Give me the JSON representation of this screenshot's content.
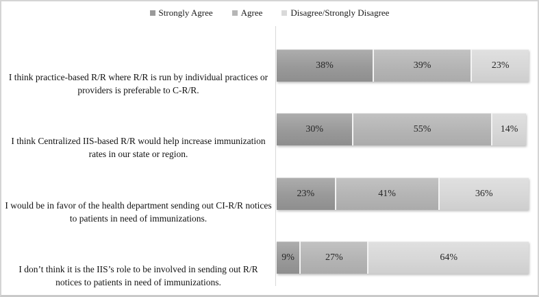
{
  "figure": {
    "background": "#ffffff",
    "border_color": "#d4d4d4"
  },
  "legend": {
    "items": [
      {
        "label": "Strongly Agree",
        "color": "#9a9a9a"
      },
      {
        "label": "Agree",
        "color": "#b6b6b6"
      },
      {
        "label": "Disagree/Strongly Disagree",
        "color": "#d9d9d9"
      }
    ]
  },
  "chart_data": {
    "type": "bar",
    "orientation": "horizontal",
    "stacked": true,
    "title": "",
    "xlabel": "",
    "ylabel": "",
    "xlim": [
      0,
      100
    ],
    "grid": false,
    "legend_position": "top",
    "axis_line_color": "#d8d8d8",
    "value_label_format": "percent",
    "categories": [
      "I think practice-based R/R where R/R is run by individual practices or providers is preferable to C-R/R.",
      "I think Centralized IIS-based R/R would help increase immunization rates in our state or region.",
      "I would be in favor of the health department sending out CI-R/R notices to patients in need of immunizations.",
      "I don’t think it is the IIS’s role to be involved in sending out R/R notices to patients in need of immunizations."
    ],
    "series": [
      {
        "name": "Strongly Agree",
        "color": "#9a9a9a",
        "values": [
          38,
          30,
          23,
          9
        ]
      },
      {
        "name": "Agree",
        "color": "#b6b6b6",
        "values": [
          39,
          55,
          41,
          27
        ]
      },
      {
        "name": "Disagree/Strongly Disagree",
        "color": "#d9d9d9",
        "values": [
          23,
          14,
          36,
          64
        ]
      }
    ]
  },
  "rows": [
    {
      "label": "I think practice-based R/R where R/R is run by individual practices or providers is preferable to C-R/R.",
      "values": [
        "38%",
        "39%",
        "23%"
      ]
    },
    {
      "label": "I think Centralized IIS-based R/R would help increase immunization rates in our state or region.",
      "values": [
        "30%",
        "55%",
        "14%"
      ]
    },
    {
      "label": "I would be in favor of the health department sending out CI-R/R notices to patients in need of immunizations.",
      "values": [
        "23%",
        "41%",
        "36%"
      ]
    },
    {
      "label": "I don’t think it is the IIS’s role to be involved in sending out R/R notices to patients in need of immunizations.",
      "values": [
        "9%",
        "27%",
        "64%"
      ]
    }
  ]
}
